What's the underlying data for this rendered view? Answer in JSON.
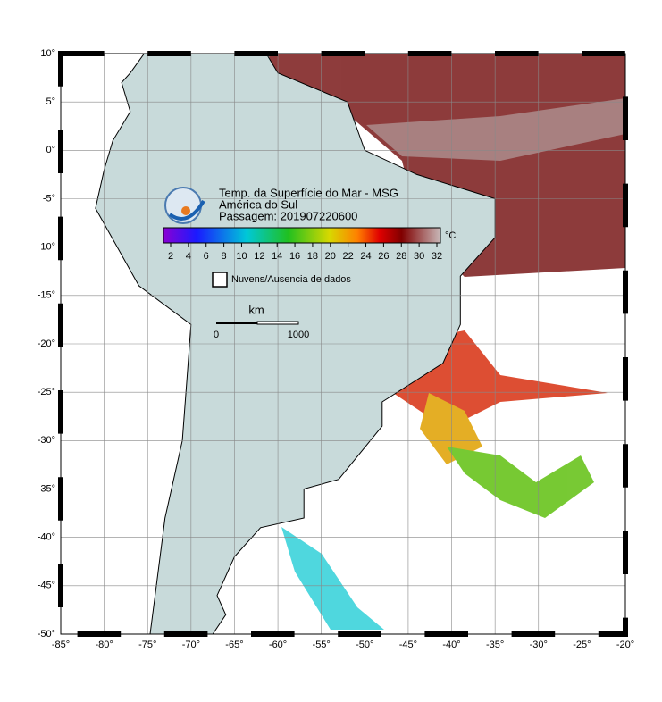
{
  "map": {
    "title_lines": [
      "Temp. da Superfície do Mar - MSG",
      "América do Sul",
      "Passagem: 201907220600"
    ],
    "colorbar": {
      "unit": "°C",
      "ticks": [
        "2",
        "4",
        "6",
        "8",
        "10",
        "12",
        "14",
        "16",
        "18",
        "20",
        "22",
        "24",
        "26",
        "28",
        "30",
        "32"
      ]
    },
    "legend": "Nuvens/Ausencia de dados",
    "scale": {
      "unit": "km",
      "start": "0",
      "end": "1000"
    },
    "longitude_labels": [
      "-85°",
      "-80°",
      "-75°",
      "-70°",
      "-65°",
      "-60°",
      "-55°",
      "-50°",
      "-45°",
      "-40°",
      "-35°",
      "-30°",
      "-25°",
      "-20°"
    ],
    "latitude_labels": [
      "10°",
      "5°",
      "0°",
      "-5°",
      "-10°",
      "-15°",
      "-20°",
      "-25°",
      "-30°",
      "-35°",
      "-40°",
      "-45°",
      "-50°"
    ]
  }
}
